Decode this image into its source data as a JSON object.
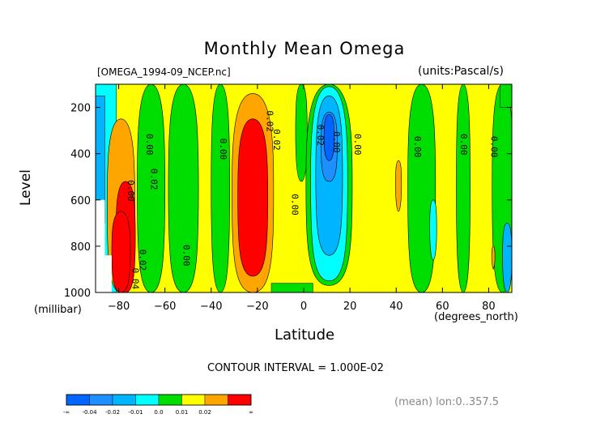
{
  "chart_data": {
    "type": "heatmap",
    "title": "Monthly Mean Omega",
    "file_label": "[OMEGA_1994-09_NCEP.nc]",
    "units_label": "(units:Pascal/s)",
    "xlabel": "Latitude",
    "x_unit": "(degrees_north)",
    "ylabel": "Level",
    "y_unit": "(millibar)",
    "xlim": [
      -90,
      90
    ],
    "ylim": [
      1000,
      100
    ],
    "x_ticks": [
      -80,
      -60,
      -40,
      -20,
      0,
      20,
      40,
      60,
      80
    ],
    "y_ticks": [
      200,
      400,
      600,
      800,
      1000
    ],
    "contour_interval": "CONTOUR INTERVAL = 1.000E-02",
    "footer": "(mean) lon:0..357.5",
    "colorbar": {
      "bins": [
        {
          "color": "#0066ff",
          "label": "-∞"
        },
        {
          "color": "#1e8fff",
          "label": "-0.04"
        },
        {
          "color": "#00b4ff",
          "label": "-0.02"
        },
        {
          "color": "#00ffff",
          "label": "-0.01"
        },
        {
          "color": "#00dd00",
          "label": "0.0"
        },
        {
          "color": "#ffff00",
          "label": "0.01"
        },
        {
          "color": "#ffa500",
          "label": "0.02"
        },
        {
          "color": "#ff0000",
          "label": "∞"
        }
      ],
      "tick_labels": [
        "-∞",
        "-0.04",
        "-0.02",
        "-0.01",
        "0.0",
        "0.01",
        "0.02",
        "∞"
      ]
    },
    "contour_labels": [
      {
        "text": "0.00",
        "lat": -76,
        "lev": 560
      },
      {
        "text": "0.00",
        "lat": -68,
        "lev": 360
      },
      {
        "text": "0.02",
        "lat": -66,
        "lev": 510
      },
      {
        "text": "0.00",
        "lat": -52,
        "lev": 840
      },
      {
        "text": "0.00",
        "lat": -36,
        "lev": 380
      },
      {
        "text": "0.02",
        "lat": -16,
        "lev": 260
      },
      {
        "text": "0.02",
        "lat": -13,
        "lev": 340
      },
      {
        "text": "0.00",
        "lat": -5,
        "lev": 620
      },
      {
        "text": "0.02",
        "lat": 6,
        "lev": 320
      },
      {
        "text": "0.00",
        "lat": 13,
        "lev": 350
      },
      {
        "text": "0.00",
        "lat": 22,
        "lev": 360
      },
      {
        "text": "0.00",
        "lat": 48,
        "lev": 370
      },
      {
        "text": "0.00",
        "lat": 68,
        "lev": 360
      },
      {
        "text": "0.00",
        "lat": 81,
        "lev": 370
      },
      {
        "text": "0.02",
        "lat": -71,
        "lev": 860
      },
      {
        "text": "0.04",
        "lat": -74,
        "lev": 940
      }
    ]
  }
}
